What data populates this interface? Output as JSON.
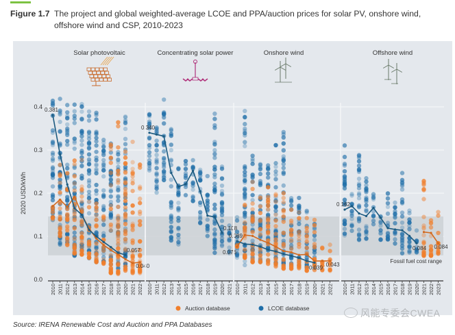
{
  "figure": {
    "number": "Figure 1.7",
    "title": "The project and global weighted-average LCOE and PPA/auction prices for solar PV, onshore wind, offshore wind and CSP, 2010-2023",
    "source": "Source: IRENA Renewable Cost and Auction and PPA Databases",
    "watermark": "风能专委会CWEA"
  },
  "chart_data": {
    "type": "scatter",
    "title": "The project and global weighted-average LCOE and PPA/auction prices for solar PV, onshore wind, offshore wind and CSP, 2010-2023",
    "ylabel": "2020 USD/kWh",
    "ylim": [
      0,
      0.43
    ],
    "yticks": [
      0.0,
      0.1,
      0.2,
      0.3,
      0.4
    ],
    "ytick_labels": [
      "0.0",
      "0.1",
      "0.2",
      "0.3",
      "0.4"
    ],
    "grid": true,
    "legend": {
      "placement": "bottom-center",
      "entries": [
        {
          "label": "Auction database",
          "color": "#f07f2d"
        },
        {
          "label": "LCOE database",
          "color": "#1f6ea8"
        }
      ]
    },
    "colors": {
      "auction": "#f07f2d",
      "lcoe": "#1f6ea8",
      "lcoe_line": "#1b5a80",
      "auction_line": "#d2691e",
      "band": "#cdd1d5"
    },
    "fossil_fuel_range": {
      "label": "Fossil fuel cost range",
      "low": 0.056,
      "high": 0.146
    },
    "panels": [
      {
        "name": "Solar photovoltaic",
        "icon": "solar-panel-icon",
        "years": [
          "2010",
          "2011",
          "2012",
          "2013",
          "2014",
          "2015",
          "2016",
          "2017",
          "2018",
          "2019",
          "2020",
          "2021",
          "2022"
        ],
        "lcoe_weighted_avg": [
          0.381,
          0.29,
          0.22,
          0.165,
          0.15,
          0.115,
          0.1,
          0.087,
          0.075,
          0.062,
          0.057,
          null,
          null
        ],
        "auction_weighted_avg": [
          0.17,
          0.185,
          0.168,
          0.192,
          0.15,
          0.118,
          0.095,
          0.08,
          0.068,
          0.058,
          0.047,
          0.038,
          0.04
        ],
        "labels": [
          {
            "series": "lcoe",
            "year": "2010",
            "value": 0.381,
            "text": "0.381"
          },
          {
            "series": "lcoe",
            "year": "2020",
            "value": 0.057,
            "text": "0.057"
          },
          {
            "series": "auction",
            "year": "2022",
            "value": 0.04,
            "text": "0.040"
          }
        ],
        "lcoe_ranges": [
          [
            0.13,
            0.43
          ],
          [
            0.08,
            0.43
          ],
          [
            0.075,
            0.42
          ],
          [
            0.055,
            0.42
          ],
          [
            0.06,
            0.41
          ],
          [
            0.045,
            0.4
          ],
          [
            0.04,
            0.39
          ],
          [
            0.04,
            0.33
          ],
          [
            0.03,
            0.32
          ],
          [
            0.025,
            0.3
          ],
          [
            0.025,
            0.38
          ],
          null,
          null
        ],
        "auction_ranges": [
          [
            0.14,
            0.19
          ],
          [
            0.1,
            0.28
          ],
          [
            0.08,
            0.26
          ],
          [
            0.06,
            0.29
          ],
          [
            0.055,
            0.29
          ],
          [
            0.05,
            0.19
          ],
          [
            0.04,
            0.19
          ],
          [
            0.035,
            0.15
          ],
          [
            0.015,
            0.32
          ],
          [
            0.01,
            0.37
          ],
          [
            0.02,
            0.32
          ],
          [
            0.015,
            0.32
          ],
          [
            0.015,
            0.3
          ]
        ]
      },
      {
        "name": "Concentrating solar power",
        "icon": "csp-tower-icon",
        "years": [
          "2010",
          "2011",
          "2012",
          "2013",
          "2014",
          "2015",
          "2016",
          "2017",
          "2018",
          "2019",
          "2020",
          "2021"
        ],
        "lcoe_weighted_avg": [
          0.34,
          0.336,
          0.332,
          0.247,
          0.215,
          0.221,
          0.252,
          0.204,
          0.148,
          0.145,
          0.108,
          null
        ],
        "auction_weighted_avg": [],
        "labels": [
          {
            "series": "lcoe",
            "year": "2010",
            "value": 0.34,
            "text": "0.340"
          },
          {
            "series": "lcoe",
            "year": "2020",
            "value": 0.108,
            "text": "0.108"
          }
        ],
        "lcoe_ranges": [
          [
            0.25,
            0.39
          ],
          [
            0.2,
            0.38
          ],
          [
            0.23,
            0.43
          ],
          [
            0.09,
            0.35
          ],
          [
            0.08,
            0.26
          ],
          [
            0.19,
            0.28
          ],
          [
            0.18,
            0.28
          ],
          [
            0.13,
            0.26
          ],
          [
            0.1,
            0.24
          ],
          [
            0.06,
            0.39
          ],
          [
            0.07,
            0.27
          ],
          [
            0.06,
            0.13
          ]
        ],
        "auction_ranges": [
          null,
          null,
          null,
          null,
          null,
          null,
          null,
          null,
          null,
          null,
          null,
          null
        ]
      },
      {
        "name": "Onshore wind",
        "icon": "onshore-wind-turbine-icon",
        "years": [
          "2010",
          "2011",
          "2012",
          "2013",
          "2014",
          "2015",
          "2016",
          "2017",
          "2018",
          "2019",
          "2020",
          "2021",
          "2022"
        ],
        "lcoe_weighted_avg": [
          0.089,
          0.082,
          0.081,
          0.076,
          0.069,
          0.065,
          0.059,
          0.055,
          0.05,
          0.043,
          0.039,
          null,
          null
        ],
        "auction_weighted_avg": [
          0.076,
          0.103,
          0.101,
          0.092,
          0.085,
          0.076,
          0.066,
          0.063,
          0.057,
          0.058,
          0.043,
          0.043,
          0.043
        ],
        "labels": [
          {
            "series": "lcoe",
            "year": "2010",
            "value": 0.089,
            "text": "0.089"
          },
          {
            "series": "auction",
            "year": "2010",
            "value": 0.076,
            "text": "0.076"
          },
          {
            "series": "lcoe",
            "year": "2020",
            "value": 0.039,
            "text": "0.039"
          },
          {
            "series": "auction",
            "year": "2022",
            "value": 0.043,
            "text": "0.043"
          }
        ],
        "lcoe_ranges": [
          [
            0.05,
            0.15
          ],
          [
            0.03,
            0.4
          ],
          [
            0.04,
            0.29
          ],
          [
            0.04,
            0.3
          ],
          [
            0.04,
            0.3
          ],
          [
            0.035,
            0.32
          ],
          [
            0.03,
            0.35
          ],
          [
            0.03,
            0.19
          ],
          [
            0.03,
            0.2
          ],
          [
            0.025,
            0.16
          ],
          [
            0.025,
            0.13
          ],
          null,
          null
        ],
        "auction_ranges": [
          [
            0.075,
            0.08
          ],
          [
            0.05,
            0.2
          ],
          [
            0.04,
            0.25
          ],
          [
            0.04,
            0.2
          ],
          [
            0.035,
            0.22
          ],
          [
            0.03,
            0.22
          ],
          [
            0.025,
            0.2
          ],
          [
            0.025,
            0.18
          ],
          [
            0.025,
            0.16
          ],
          [
            0.02,
            0.15
          ],
          [
            0.02,
            0.14
          ],
          [
            0.02,
            0.09
          ],
          [
            0.02,
            0.085
          ]
        ]
      },
      {
        "name": "Offshore wind",
        "icon": "offshore-wind-turbine-icon",
        "years": [
          "2010",
          "2011",
          "2012",
          "2013",
          "2014",
          "2015",
          "2016",
          "2017",
          "2018",
          "2019",
          "2020",
          "2021",
          "2022",
          "2023"
        ],
        "lcoe_weighted_avg": [
          0.162,
          0.17,
          0.153,
          0.147,
          0.166,
          0.143,
          0.119,
          0.116,
          0.114,
          0.101,
          0.084,
          null,
          null,
          null
        ],
        "auction_weighted_avg": [
          null,
          null,
          null,
          null,
          null,
          null,
          null,
          null,
          null,
          null,
          null,
          0.11,
          0.108,
          0.084
        ],
        "labels": [
          {
            "series": "lcoe",
            "year": "2010",
            "value": 0.162,
            "text": "0.162"
          },
          {
            "series": "lcoe",
            "year": "2020",
            "value": 0.084,
            "text": "0.084"
          },
          {
            "series": "auction",
            "year": "2023",
            "value": 0.084,
            "text": "0.084"
          }
        ],
        "lcoe_ranges": [
          [
            0.1,
            0.33
          ],
          [
            0.11,
            0.21
          ],
          [
            0.09,
            0.29
          ],
          [
            0.085,
            0.24
          ],
          [
            0.12,
            0.2
          ],
          [
            0.09,
            0.15
          ],
          [
            0.08,
            0.2
          ],
          [
            0.08,
            0.18
          ],
          [
            0.06,
            0.25
          ],
          [
            0.05,
            0.17
          ],
          [
            0.06,
            0.12
          ],
          null,
          null,
          null
        ],
        "auction_ranges": [
          null,
          null,
          null,
          null,
          null,
          null,
          null,
          null,
          null,
          null,
          null,
          [
            0.055,
            0.28
          ],
          [
            0.055,
            0.18
          ],
          [
            0.06,
            0.17
          ]
        ]
      }
    ]
  }
}
